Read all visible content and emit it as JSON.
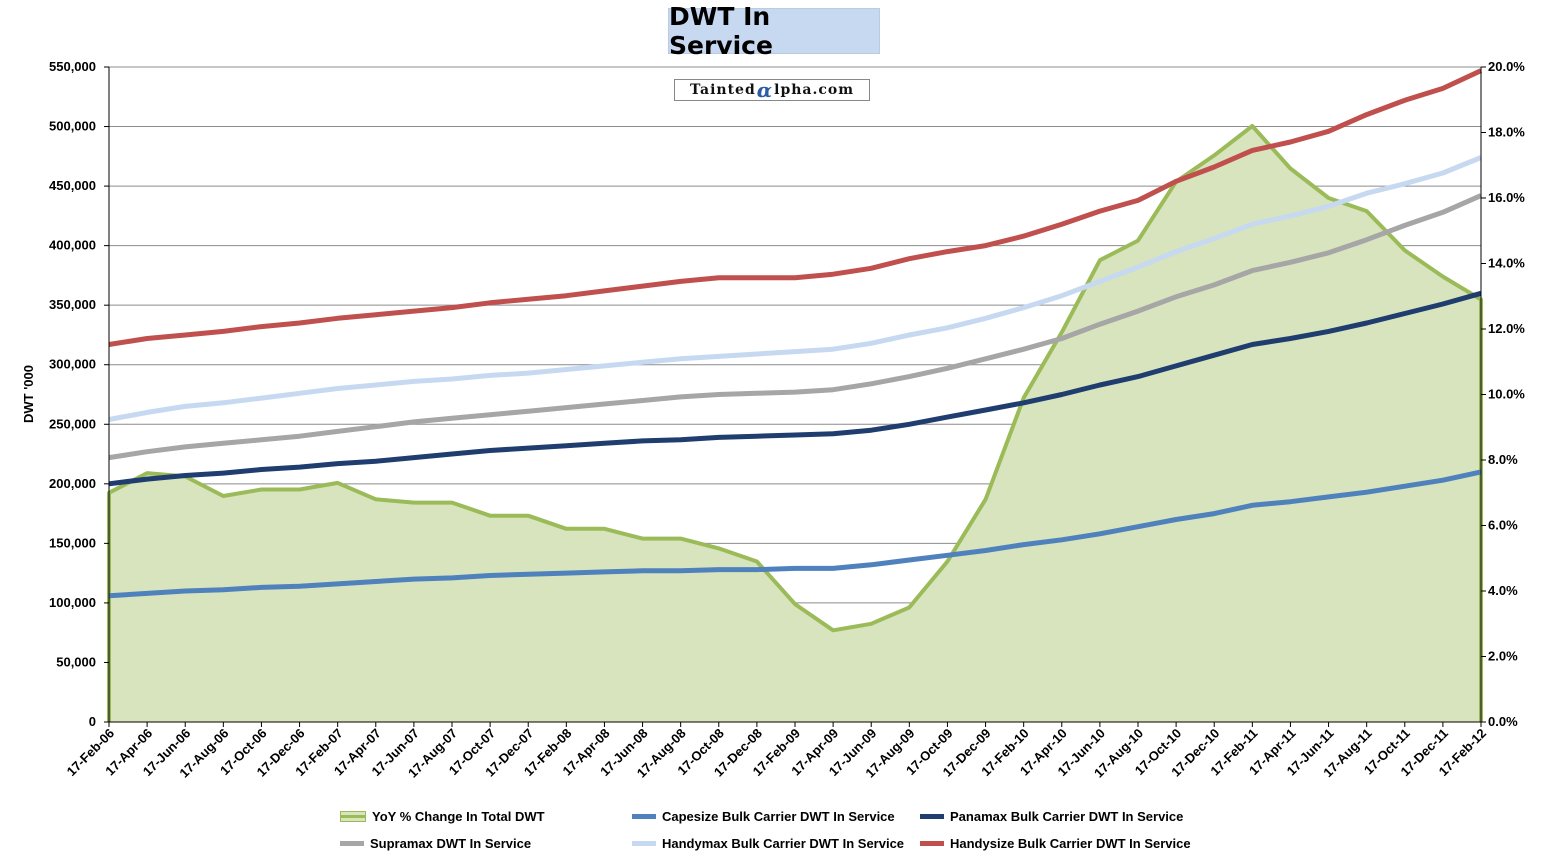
{
  "chart_data": {
    "type": "line",
    "title": "DWT In Service",
    "watermark": {
      "prefix": "Tainted",
      "alpha": "α",
      "suffix": "lpha.com"
    },
    "ylabel": "DWT '000",
    "ylim": [
      0,
      550000
    ],
    "y_ticks": [
      "0",
      "50,000",
      "100,000",
      "150,000",
      "200,000",
      "250,000",
      "300,000",
      "350,000",
      "400,000",
      "450,000",
      "500,000",
      "550,000"
    ],
    "y2lim": [
      0,
      20
    ],
    "y2_ticks": [
      "0.0%",
      "2.0%",
      "4.0%",
      "6.0%",
      "8.0%",
      "10.0%",
      "12.0%",
      "14.0%",
      "16.0%",
      "18.0%",
      "20.0%"
    ],
    "grid": "horizontal",
    "legend_position": "bottom",
    "categories": [
      "17-Feb-06",
      "17-Apr-06",
      "17-Jun-06",
      "17-Aug-06",
      "17-Oct-06",
      "17-Dec-06",
      "17-Feb-07",
      "17-Apr-07",
      "17-Jun-07",
      "17-Aug-07",
      "17-Oct-07",
      "17-Dec-07",
      "17-Feb-08",
      "17-Apr-08",
      "17-Jun-08",
      "17-Aug-08",
      "17-Oct-08",
      "17-Dec-08",
      "17-Feb-09",
      "17-Apr-09",
      "17-Jun-09",
      "17-Aug-09",
      "17-Oct-09",
      "17-Dec-09",
      "17-Feb-10",
      "17-Apr-10",
      "17-Jun-10",
      "17-Aug-10",
      "17-Oct-10",
      "17-Dec-10",
      "17-Feb-11",
      "17-Apr-11",
      "17-Jun-11",
      "17-Aug-11",
      "17-Oct-11",
      "17-Dec-11",
      "17-Feb-12"
    ],
    "series": [
      {
        "name": "YoY % Change In Total DWT",
        "axis": "right",
        "kind": "area",
        "color": "#9bbb59",
        "fill": "#d7e4bd",
        "values": [
          7.0,
          7.6,
          7.5,
          6.9,
          7.1,
          7.1,
          7.3,
          6.8,
          6.7,
          6.7,
          6.3,
          6.3,
          5.9,
          5.9,
          5.6,
          5.6,
          5.3,
          4.9,
          3.6,
          2.8,
          3.0,
          3.5,
          4.9,
          6.8,
          9.9,
          11.9,
          14.1,
          14.7,
          16.5,
          17.3,
          18.2,
          16.9,
          16.0,
          15.6,
          14.4,
          13.6,
          12.9
        ]
      },
      {
        "name": "Capesize Bulk Carrier DWT In Service",
        "axis": "left",
        "kind": "line",
        "color": "#4f81bd",
        "values": [
          106000,
          108000,
          110000,
          111000,
          113000,
          114000,
          116000,
          118000,
          120000,
          121000,
          123000,
          124000,
          125000,
          126000,
          127000,
          127000,
          128000,
          128000,
          129000,
          129000,
          132000,
          136000,
          140000,
          144000,
          149000,
          153000,
          158000,
          164000,
          170000,
          175000,
          182000,
          185000,
          189000,
          193000,
          198000,
          203000,
          210000
        ]
      },
      {
        "name": "Panamax Bulk Carrier DWT In Service",
        "axis": "left",
        "kind": "line",
        "color": "#1f3d6e",
        "values": [
          200000,
          204000,
          207000,
          209000,
          212000,
          214000,
          217000,
          219000,
          222000,
          225000,
          228000,
          230000,
          232000,
          234000,
          236000,
          237000,
          239000,
          240000,
          241000,
          242000,
          245000,
          250000,
          256000,
          262000,
          268000,
          275000,
          283000,
          290000,
          299000,
          308000,
          317000,
          322000,
          328000,
          335000,
          343000,
          351000,
          360000
        ]
      },
      {
        "name": "Supramax DWT In Service",
        "axis": "left",
        "kind": "line",
        "color": "#a6a6a6",
        "values": [
          222000,
          227000,
          231000,
          234000,
          237000,
          240000,
          244000,
          248000,
          252000,
          255000,
          258000,
          261000,
          264000,
          267000,
          270000,
          273000,
          275000,
          276000,
          277000,
          279000,
          284000,
          290000,
          297000,
          305000,
          313000,
          322000,
          334000,
          345000,
          357000,
          367000,
          379000,
          386000,
          394000,
          405000,
          417000,
          428000,
          442000
        ]
      },
      {
        "name": "Handymax Bulk Carrier DWT In Service",
        "axis": "left",
        "kind": "line",
        "color": "#c6d9f1",
        "values": [
          254000,
          260000,
          265000,
          268000,
          272000,
          276000,
          280000,
          283000,
          286000,
          288000,
          291000,
          293000,
          296000,
          299000,
          302000,
          305000,
          307000,
          309000,
          311000,
          313000,
          318000,
          325000,
          331000,
          339000,
          348000,
          358000,
          370000,
          382000,
          395000,
          406000,
          418000,
          425000,
          433000,
          444000,
          452000,
          461000,
          474000
        ]
      },
      {
        "name": "Handysize Bulk Carrier DWT In Service",
        "axis": "left",
        "kind": "line",
        "color": "#c0504d",
        "values": [
          317000,
          322000,
          325000,
          328000,
          332000,
          335000,
          339000,
          342000,
          345000,
          348000,
          352000,
          355000,
          358000,
          362000,
          366000,
          370000,
          373000,
          373000,
          373000,
          376000,
          381000,
          389000,
          395000,
          400000,
          408000,
          418000,
          429000,
          438000,
          454000,
          466000,
          480000,
          487000,
          496000,
          510000,
          522000,
          532000,
          547000
        ]
      }
    ]
  }
}
